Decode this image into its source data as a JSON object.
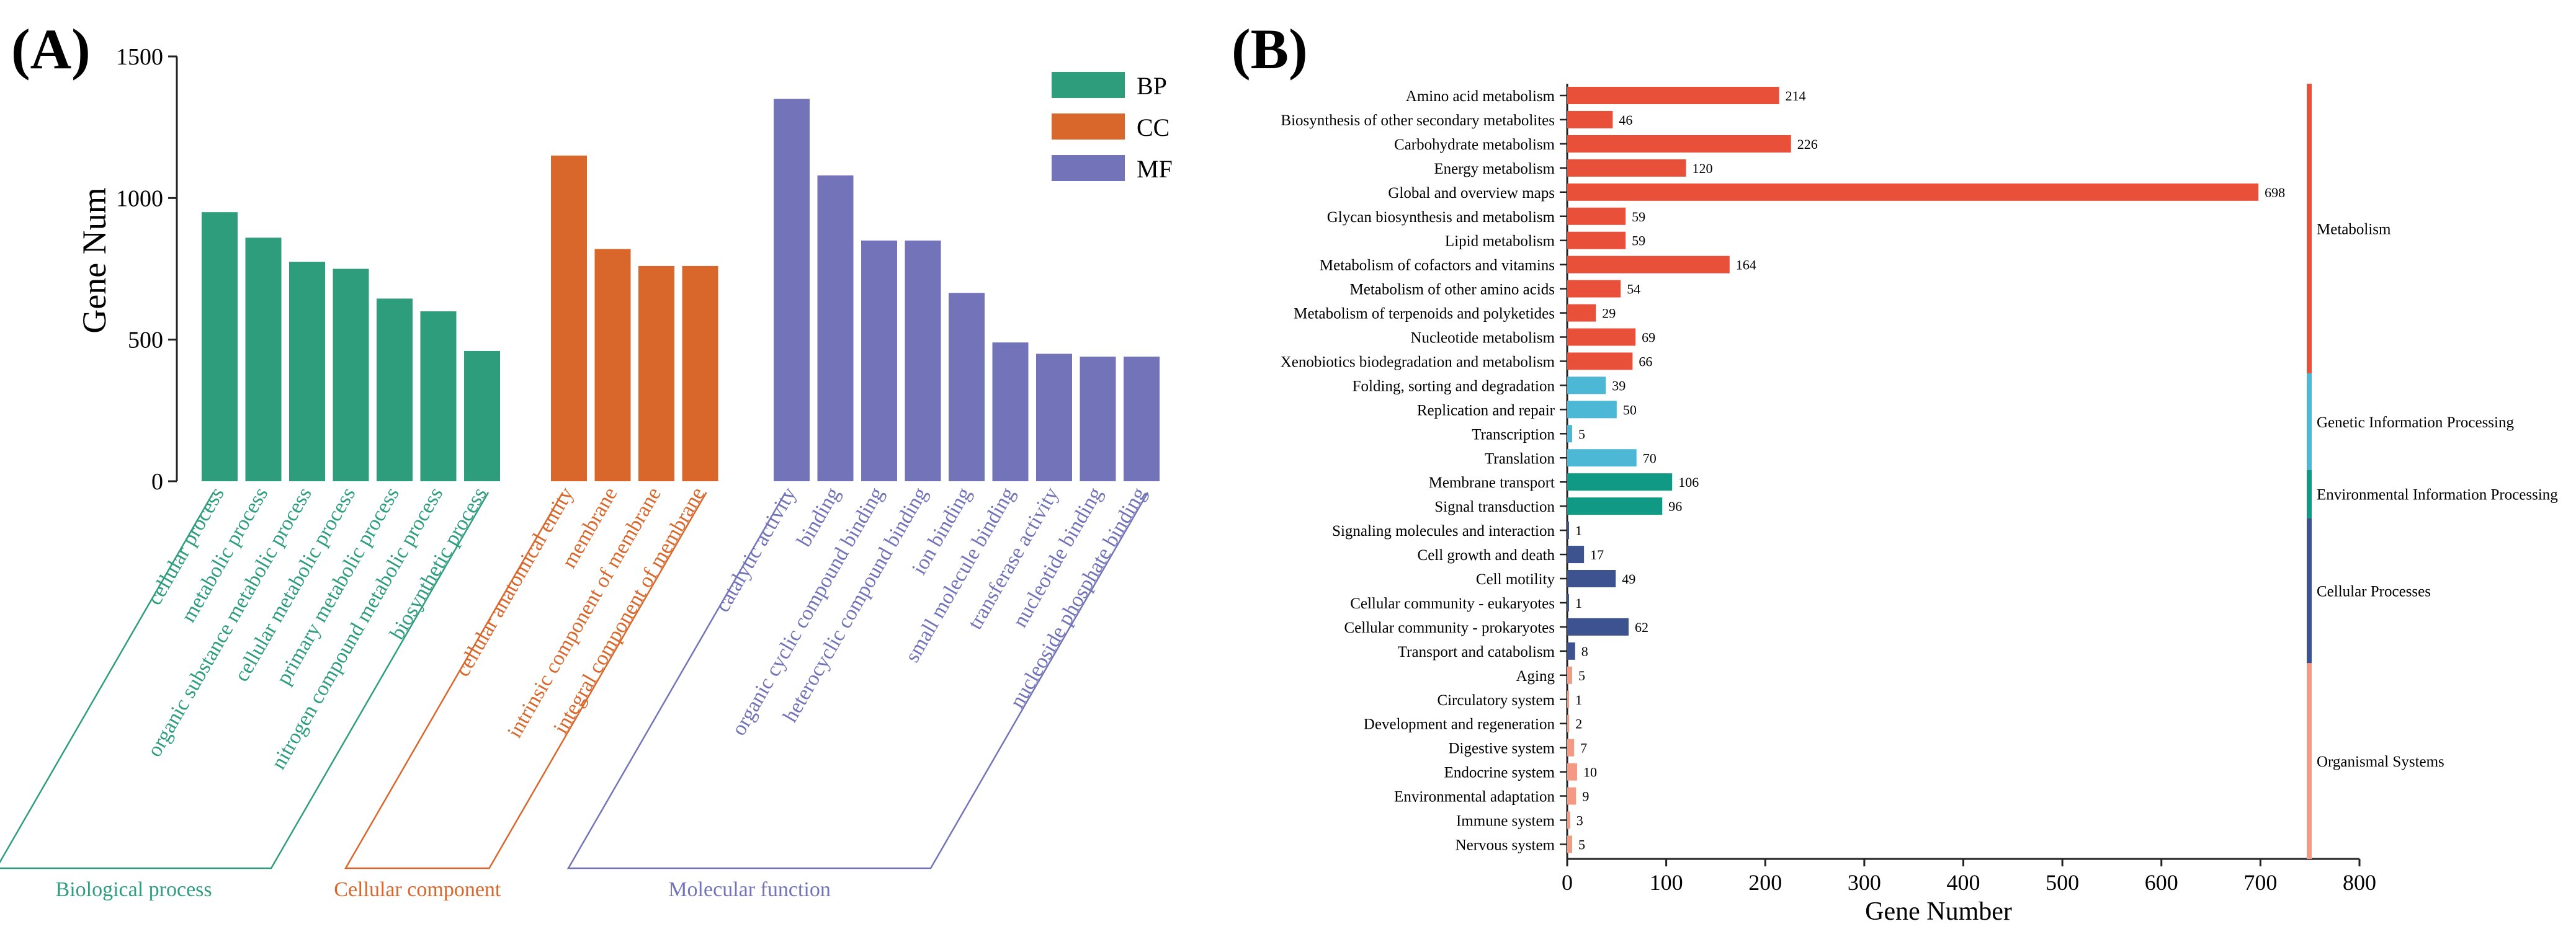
{
  "panel_a": {
    "label": "(A)",
    "chart_data": {
      "type": "bar",
      "ylabel": "Gene Num",
      "ylim": [
        0,
        1500
      ],
      "yticks": [
        0,
        500,
        1000,
        1500
      ],
      "legend_position": "top-right",
      "series": [
        {
          "name": "BP",
          "color": "#2e9d7c",
          "group": "Biological process",
          "categories": [
            "cellular process",
            "metabolic process",
            "organic substance metabolic process",
            "cellular metabolic process",
            "primary metabolic process",
            "nitrogen compound metabolic process",
            "biosynthetic process"
          ],
          "values": [
            950,
            860,
            775,
            750,
            645,
            600,
            460
          ]
        },
        {
          "name": "CC",
          "color": "#d9662a",
          "group": "Cellular component",
          "categories": [
            "cellular anatomical entity",
            "membrane",
            "intrinsic component of membrane",
            "integral component of membrane"
          ],
          "values": [
            1150,
            820,
            760,
            760
          ]
        },
        {
          "name": "MF",
          "color": "#7273b8",
          "group": "Molecular function",
          "categories": [
            "catalytic activity",
            "binding",
            "organic cyclic compound binding",
            "heterocyclic compound binding",
            "ion binding",
            "small molecule binding",
            "transferase activity",
            "nucleotide binding",
            "nucleoside phosphate binding"
          ],
          "values": [
            1350,
            1080,
            850,
            850,
            665,
            490,
            450,
            440,
            440
          ]
        }
      ]
    }
  },
  "panel_b": {
    "label": "(B)",
    "chart_data": {
      "type": "bar",
      "orientation": "horizontal",
      "xlabel": "Gene Number",
      "xlim": [
        0,
        800
      ],
      "xticks": [
        0,
        100,
        200,
        300,
        400,
        500,
        600,
        700,
        800
      ],
      "groups": [
        {
          "name": "Metabolism",
          "color": "#e8503a",
          "size": 12
        },
        {
          "name": "Genetic Information Processing",
          "color": "#4db7d6",
          "size": 4
        },
        {
          "name": "Environmental Information Processing",
          "color": "#109a86",
          "size": 2
        },
        {
          "name": "Cellular Processes",
          "color": "#3c5390",
          "size": 6
        },
        {
          "name": "Organismal Systems",
          "color": "#f29a84",
          "size": 8
        }
      ],
      "categories": [
        "Amino acid metabolism",
        "Biosynthesis of other secondary metabolites",
        "Carbohydrate metabolism",
        "Energy metabolism",
        "Global and overview maps",
        "Glycan biosynthesis and metabolism",
        "Lipid metabolism",
        "Metabolism of cofactors and vitamins",
        "Metabolism of other amino acids",
        "Metabolism of terpenoids and polyketides",
        "Nucleotide metabolism",
        "Xenobiotics biodegradation and metabolism",
        "Folding, sorting and degradation",
        "Replication and repair",
        "Transcription",
        "Translation",
        "Membrane transport",
        "Signal transduction",
        "Signaling molecules and interaction",
        "Cell growth and death",
        "Cell motility",
        "Cellular community - eukaryotes",
        "Cellular community - prokaryotes",
        "Transport and catabolism",
        "Aging",
        "Circulatory system",
        "Development and regeneration",
        "Digestive system",
        "Endocrine system",
        "Environmental adaptation",
        "Immune system",
        "Nervous system"
      ],
      "values": [
        214,
        46,
        226,
        120,
        698,
        59,
        59,
        164,
        54,
        29,
        69,
        66,
        39,
        50,
        5,
        70,
        106,
        96,
        1,
        17,
        49,
        1,
        62,
        8,
        5,
        1,
        2,
        7,
        10,
        9,
        3,
        5
      ]
    }
  }
}
